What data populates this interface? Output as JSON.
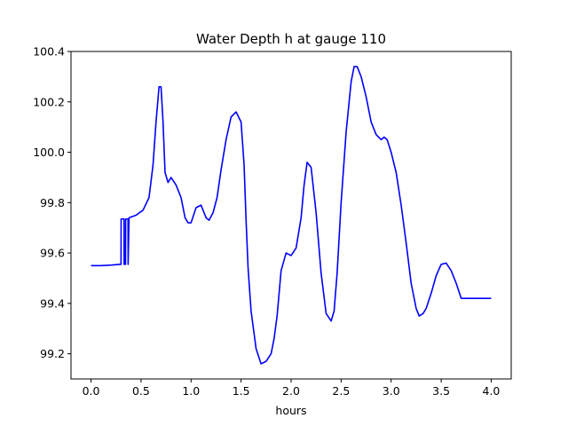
{
  "chart_data": {
    "type": "line",
    "title": "Water Depth h at gauge 110",
    "xlabel": "hours",
    "ylabel": "",
    "xlim": [
      -0.2,
      4.2
    ],
    "ylim": [
      99.1,
      100.4
    ],
    "xticks": [
      0.0,
      0.5,
      1.0,
      1.5,
      2.0,
      2.5,
      3.0,
      3.5,
      4.0
    ],
    "xtick_labels": [
      "0.0",
      "0.5",
      "1.0",
      "1.5",
      "2.0",
      "2.5",
      "3.0",
      "3.5",
      "4.0"
    ],
    "yticks": [
      99.2,
      99.4,
      99.6,
      99.8,
      100.0,
      100.2,
      100.4
    ],
    "ytick_labels": [
      "99.2",
      "99.4",
      "99.6",
      "99.8",
      "100.0",
      "100.2",
      "100.4"
    ],
    "grid": false,
    "series": [
      {
        "color": "#0000ff",
        "x": [
          0.0,
          0.1,
          0.2,
          0.29,
          0.3,
          0.301,
          0.33,
          0.331,
          0.345,
          0.346,
          0.37,
          0.371,
          0.38,
          0.45,
          0.52,
          0.58,
          0.62,
          0.65,
          0.68,
          0.7,
          0.72,
          0.74,
          0.77,
          0.8,
          0.85,
          0.9,
          0.94,
          0.97,
          1.0,
          1.05,
          1.1,
          1.15,
          1.18,
          1.22,
          1.26,
          1.3,
          1.35,
          1.4,
          1.45,
          1.5,
          1.53,
          1.55,
          1.57,
          1.6,
          1.65,
          1.7,
          1.75,
          1.8,
          1.83,
          1.86,
          1.9,
          1.95,
          2.0,
          2.05,
          2.1,
          2.13,
          2.16,
          2.2,
          2.25,
          2.3,
          2.35,
          2.4,
          2.43,
          2.46,
          2.5,
          2.55,
          2.6,
          2.63,
          2.66,
          2.7,
          2.75,
          2.8,
          2.85,
          2.9,
          2.93,
          2.96,
          3.0,
          3.05,
          3.1,
          3.15,
          3.2,
          3.25,
          3.28,
          3.32,
          3.35,
          3.4,
          3.45,
          3.5,
          3.55,
          3.6,
          3.65,
          3.7,
          3.75,
          3.8,
          3.85,
          3.88,
          3.92,
          3.96,
          4.0
        ],
        "y": [
          99.55,
          99.55,
          99.552,
          99.555,
          99.555,
          99.735,
          99.735,
          99.555,
          99.555,
          99.735,
          99.735,
          99.555,
          99.74,
          99.75,
          99.77,
          99.82,
          99.95,
          100.12,
          100.26,
          100.26,
          100.12,
          99.92,
          99.88,
          99.9,
          99.87,
          99.82,
          99.74,
          99.72,
          99.72,
          99.78,
          99.79,
          99.74,
          99.73,
          99.76,
          99.82,
          99.93,
          100.05,
          100.14,
          100.16,
          100.12,
          99.95,
          99.73,
          99.54,
          99.37,
          99.22,
          99.16,
          99.17,
          99.2,
          99.26,
          99.35,
          99.53,
          99.6,
          99.59,
          99.62,
          99.74,
          99.87,
          99.96,
          99.94,
          99.76,
          99.52,
          99.36,
          99.33,
          99.37,
          99.52,
          99.8,
          100.08,
          100.28,
          100.34,
          100.34,
          100.3,
          100.22,
          100.12,
          100.07,
          100.05,
          100.06,
          100.05,
          100.0,
          99.92,
          99.79,
          99.64,
          99.48,
          99.38,
          99.35,
          99.36,
          99.38,
          99.44,
          99.51,
          99.555,
          99.56,
          99.53,
          99.48,
          99.42,
          99.42,
          99.42,
          99.42,
          99.42,
          99.42,
          99.42,
          99.42
        ]
      }
    ]
  }
}
